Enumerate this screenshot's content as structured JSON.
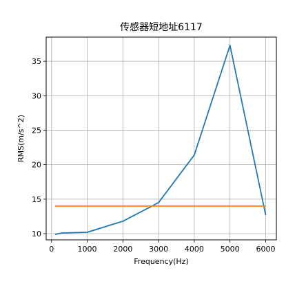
{
  "chart_data": {
    "type": "line",
    "title": "传感器短地址6117",
    "xlabel": "Frequency(Hz)",
    "ylabel": "RMS(m/s^2)",
    "xlim": [
      -150,
      6300
    ],
    "ylim": [
      9.1,
      38.5
    ],
    "x_ticks": [
      0,
      1000,
      2000,
      3000,
      4000,
      5000,
      6000
    ],
    "y_ticks": [
      10,
      15,
      20,
      25,
      30,
      35
    ],
    "grid": true,
    "series": [
      {
        "color": "#1f77b4",
        "x": [
          100,
          300,
          1000,
          2000,
          3000,
          4000,
          5000,
          6000
        ],
        "y": [
          9.9,
          10.1,
          10.2,
          11.8,
          14.5,
          21.4,
          37.3,
          12.7
        ]
      },
      {
        "color": "#ff7f0e",
        "x": [
          100,
          6000
        ],
        "y": [
          14.0,
          14.0
        ]
      }
    ]
  }
}
